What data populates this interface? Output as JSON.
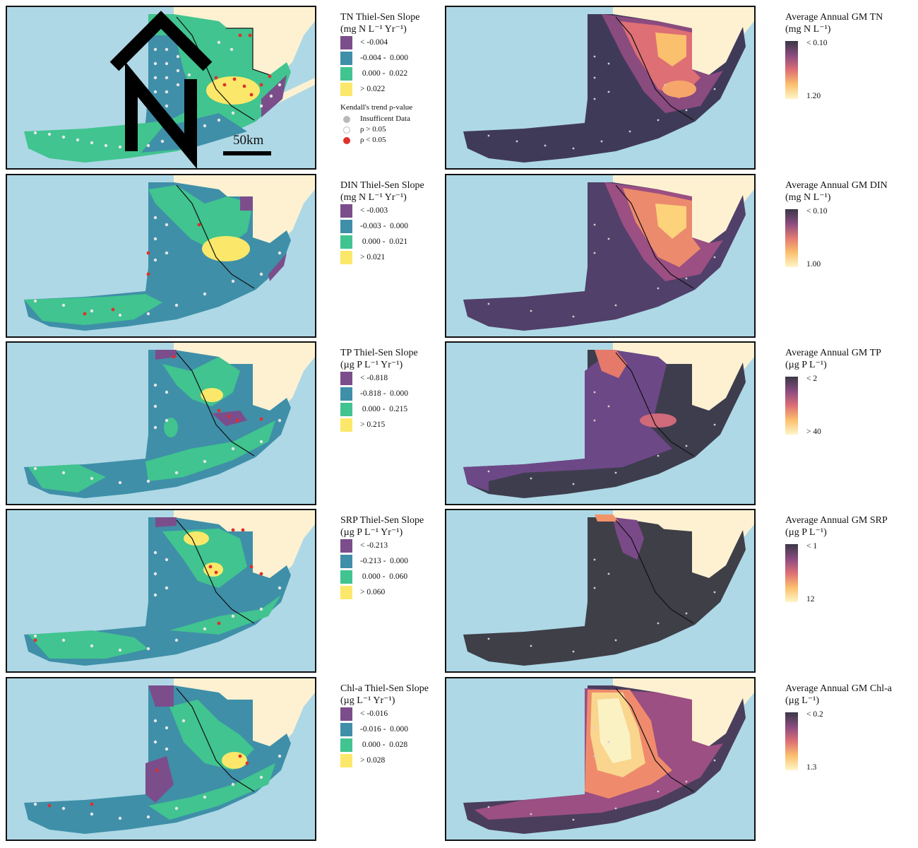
{
  "scale_bar": "50km",
  "north_arrow": "north-arrow-icon",
  "kendall": {
    "title": "Kendall's trend ρ-value",
    "items": [
      {
        "label": "Insufficent Data",
        "color": "#b9b9b9"
      },
      {
        "label": "ρ > 0.05",
        "color": "#ffffff"
      },
      {
        "label": "ρ < 0.05",
        "color": "#e0302b"
      }
    ]
  },
  "slope_colors": [
    "#7b4e8b",
    "#3f8fa8",
    "#41c48f",
    "#fbe86a"
  ],
  "rows": [
    {
      "slope_title_1": "TN Thiel-Sen Slope",
      "slope_title_2": "(mg N L⁻¹ Yr⁻¹)",
      "classes": [
        "< -0.004",
        "-0.004 -  0.000",
        " 0.000 -  0.022",
        "> 0.022"
      ],
      "avg_title_1": "Average Annual GM TN",
      "avg_title_2": "(mg N L⁻¹)",
      "cbar_top": "< 0.10",
      "cbar_bottom": "1.20"
    },
    {
      "slope_title_1": "DIN Thiel-Sen Slope",
      "slope_title_2": "(mg N L⁻¹ Yr⁻¹)",
      "classes": [
        "< -0.003",
        "-0.003 -  0.000",
        " 0.000 -  0.021",
        "> 0.021"
      ],
      "avg_title_1": "Average Annual GM DIN",
      "avg_title_2": "(mg N L⁻¹)",
      "cbar_top": "< 0.10",
      "cbar_bottom": "1.00"
    },
    {
      "slope_title_1": "TP Thiel-Sen Slope",
      "slope_title_2": "(µg P L⁻¹ Yr⁻¹)",
      "classes": [
        "< -0.818",
        "-0.818 -  0.000",
        " 0.000 -  0.215",
        "> 0.215"
      ],
      "avg_title_1": "Average Annual GM TP",
      "avg_title_2": "(µg P L⁻¹)",
      "cbar_top": "< 2",
      "cbar_bottom": "> 40"
    },
    {
      "slope_title_1": "SRP Thiel-Sen Slope",
      "slope_title_2": "(µg P L⁻¹ Yr⁻¹)",
      "classes": [
        "< -0.213",
        "-0.213 -  0.000",
        " 0.000 -  0.060",
        "> 0.060"
      ],
      "avg_title_1": "Average Annual GM SRP",
      "avg_title_2": "(µg P L⁻¹)",
      "cbar_top": "< 1",
      "cbar_bottom": "12"
    },
    {
      "slope_title_1": "Chl-a Thiel-Sen Slope",
      "slope_title_2": "(µg L⁻¹ Yr⁻¹)",
      "classes": [
        "< -0.016",
        "-0.016 -  0.000",
        " 0.000 -  0.028",
        "> 0.028"
      ],
      "avg_title_1": "Average Annual GM Chl-a",
      "avg_title_2": "(µg L⁻¹)",
      "cbar_top": "< 0.2",
      "cbar_bottom": "1.3"
    }
  ]
}
